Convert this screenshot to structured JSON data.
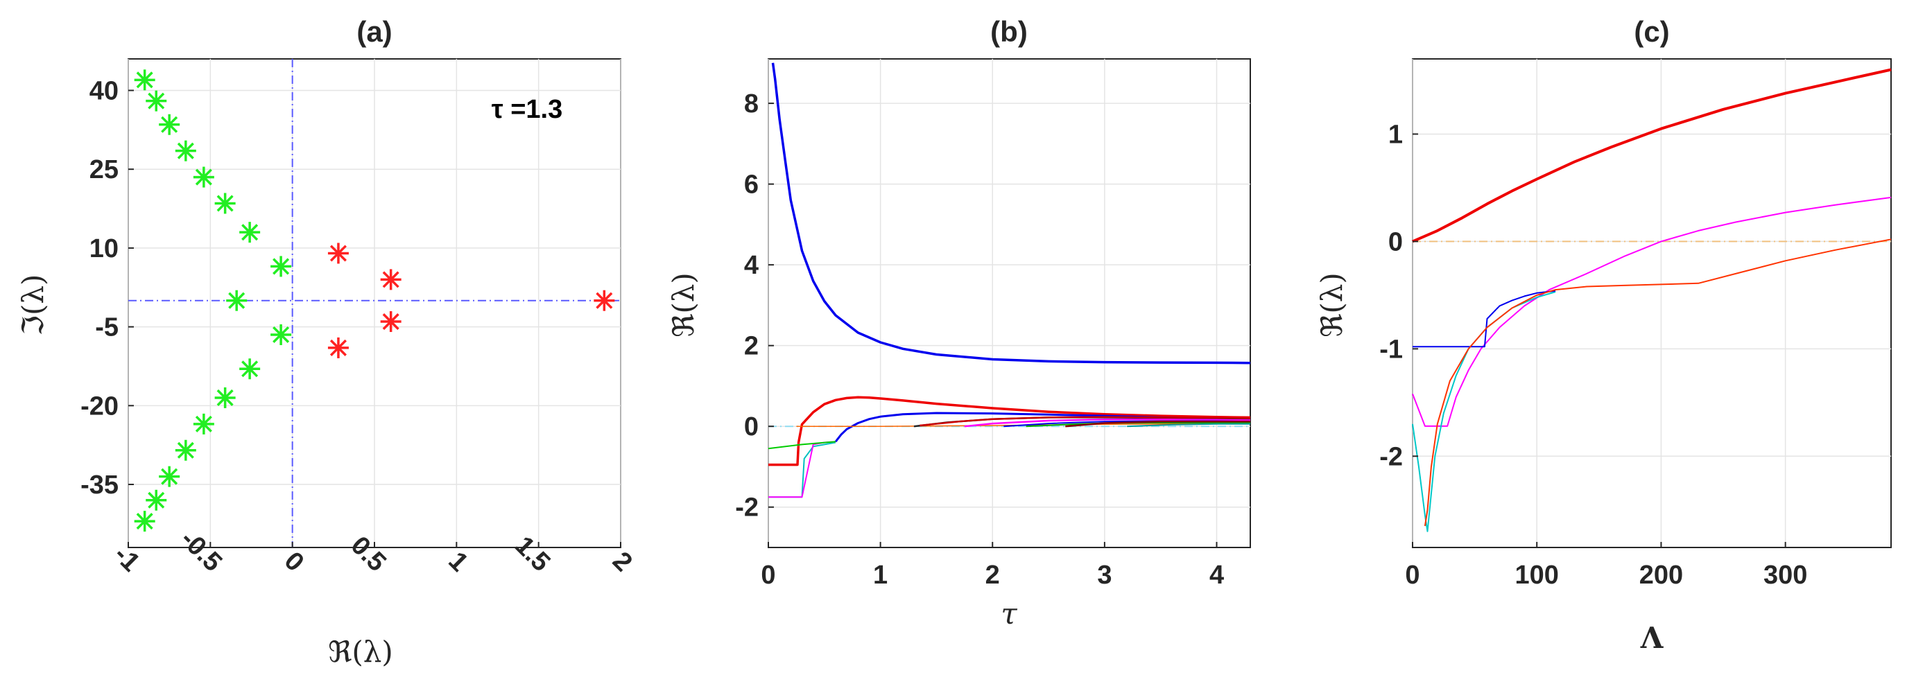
{
  "chart_data": [
    {
      "type": "scatter",
      "title": "(a)",
      "xlabel": "ℜ(λ)",
      "ylabel": "ℑ(λ)",
      "annotation": "τ =1.3",
      "xlim": [
        -1,
        2
      ],
      "ylim": [
        -47,
        46
      ],
      "xticks": [
        "-1",
        "-0.5",
        "0",
        "0.5",
        "1",
        "1.5",
        "2"
      ],
      "xtick_values": [
        -1,
        -0.5,
        0,
        0.5,
        1,
        1.5,
        2
      ],
      "yticks": [
        "40",
        "25",
        "10",
        "-5",
        "-20",
        "-35"
      ],
      "ytick_values": [
        40,
        25,
        10,
        -5,
        -20,
        -35
      ],
      "grid": true,
      "reference_lines": [
        {
          "orientation": "vertical",
          "x": 0,
          "color": "#5a5aff"
        },
        {
          "orientation": "horizontal",
          "y": 0,
          "color": "#5a5aff"
        }
      ],
      "series": [
        {
          "color": "#22ee22",
          "x": [
            -0.9,
            -0.83,
            -0.75,
            -0.65,
            -0.54,
            -0.41,
            -0.26,
            -0.07,
            -0.34,
            -0.07,
            -0.26,
            -0.41,
            -0.54,
            -0.65,
            -0.75,
            -0.83,
            -0.9
          ],
          "y": [
            42,
            38,
            33.5,
            28.5,
            23.5,
            18.5,
            13,
            6.5,
            0,
            -6.5,
            -13,
            -18.5,
            -23.5,
            -28.5,
            -33.5,
            -38,
            -42
          ]
        },
        {
          "color": "#ff2222",
          "x": [
            0.28,
            0.6,
            0.6,
            0.28,
            1.9
          ],
          "y": [
            9,
            4,
            -4,
            -9,
            0
          ]
        }
      ]
    },
    {
      "type": "line",
      "title": "(b)",
      "xlabel": "τ",
      "ylabel": "ℜ(λ)",
      "xlim": [
        0,
        4.3
      ],
      "ylim": [
        -3,
        9.1
      ],
      "xticks": [
        "0",
        "1",
        "2",
        "3",
        "4"
      ],
      "xtick_values": [
        0,
        1,
        2,
        3,
        4
      ],
      "yticks": [
        "8",
        "6",
        "4",
        "2",
        "0",
        "-2"
      ],
      "ytick_values": [
        8,
        6,
        4,
        2,
        0,
        -2
      ],
      "grid": true,
      "reference_lines": [
        {
          "orientation": "horizontal",
          "y": 0,
          "color": "#8fdcf0"
        }
      ],
      "series": [
        {
          "color": "#0000ee",
          "width": 3.5,
          "x": [
            0.04,
            0.06,
            0.1,
            0.15,
            0.2,
            0.3,
            0.4,
            0.5,
            0.6,
            0.8,
            1.0,
            1.2,
            1.5,
            2.0,
            2.5,
            3.0,
            3.5,
            4.0,
            4.3
          ],
          "y": [
            9.0,
            8.6,
            7.6,
            6.6,
            5.6,
            4.35,
            3.6,
            3.1,
            2.75,
            2.32,
            2.08,
            1.92,
            1.78,
            1.66,
            1.61,
            1.59,
            1.58,
            1.575,
            1.57
          ]
        },
        {
          "color": "#ee0000",
          "width": 3.5,
          "x": [
            0,
            0.26,
            0.27,
            0.3,
            0.4,
            0.5,
            0.6,
            0.7,
            0.8,
            0.9,
            1.0,
            1.2,
            1.5,
            2.0,
            2.5,
            3.0,
            3.5,
            4.0,
            4.3
          ],
          "y": [
            -0.95,
            -0.95,
            -0.4,
            0.05,
            0.35,
            0.55,
            0.65,
            0.7,
            0.72,
            0.71,
            0.69,
            0.64,
            0.56,
            0.45,
            0.36,
            0.3,
            0.26,
            0.23,
            0.22
          ]
        },
        {
          "color": "#0000ee",
          "width": 3,
          "x": [
            0.6,
            0.65,
            0.7,
            0.8,
            0.9,
            1.0,
            1.2,
            1.5,
            2.0,
            2.5,
            3.0,
            3.5,
            4.0,
            4.3
          ],
          "y": [
            -0.38,
            -0.2,
            -0.07,
            0.08,
            0.18,
            0.24,
            0.3,
            0.33,
            0.32,
            0.29,
            0.26,
            0.22,
            0.19,
            0.17
          ]
        },
        {
          "color": "#00c0c0",
          "width": 2,
          "x": [
            0,
            0.3,
            0.32,
            0.4,
            0.6
          ],
          "y": [
            -1.75,
            -1.75,
            -0.8,
            -0.5,
            -0.4
          ]
        },
        {
          "color": "#ff00ff",
          "width": 2,
          "x": [
            0,
            0.3,
            0.4,
            0.5,
            0.6
          ],
          "y": [
            -1.75,
            -1.75,
            -0.45,
            -0.4,
            -0.38
          ]
        },
        {
          "color": "#00cc00",
          "width": 2,
          "x": [
            0,
            0.3,
            0.6
          ],
          "y": [
            -0.55,
            -0.45,
            -0.38
          ]
        },
        {
          "color": "#ff6600",
          "width": 1.5,
          "x": [
            0.25,
            1.0,
            2.0,
            3.0,
            4.3
          ],
          "y": [
            0.0,
            0.0,
            0.02,
            0.05,
            0.07
          ]
        },
        {
          "color": "#222222",
          "width": 2.5,
          "x": [
            1.3,
            1.6,
            2.0,
            2.5,
            3.0,
            3.5,
            4.0,
            4.3
          ],
          "y": [
            0.0,
            0.1,
            0.18,
            0.22,
            0.22,
            0.21,
            0.2,
            0.19
          ]
        },
        {
          "color": "#cc0000",
          "width": 2.5,
          "x": [
            1.35,
            1.7,
            2.0,
            2.5,
            3.0,
            3.5,
            4.0,
            4.3
          ],
          "y": [
            0.02,
            0.12,
            0.18,
            0.22,
            0.23,
            0.22,
            0.21,
            0.2
          ]
        },
        {
          "color": "#ff00ff",
          "width": 2.5,
          "x": [
            1.75,
            2.0,
            2.5,
            3.0,
            3.5,
            4.0,
            4.3
          ],
          "y": [
            0.0,
            0.07,
            0.14,
            0.17,
            0.17,
            0.16,
            0.15
          ]
        },
        {
          "color": "#0000ee",
          "width": 2,
          "x": [
            2.1,
            2.5,
            3.0,
            3.5,
            4.0,
            4.3
          ],
          "y": [
            0.0,
            0.07,
            0.12,
            0.13,
            0.13,
            0.12
          ]
        },
        {
          "color": "#00aa00",
          "width": 2,
          "x": [
            2.3,
            2.7,
            3.0,
            3.5,
            4.0,
            4.3
          ],
          "y": [
            0.0,
            0.05,
            0.08,
            0.09,
            0.09,
            0.08
          ]
        },
        {
          "color": "#880000",
          "width": 2.5,
          "x": [
            2.65,
            3.0,
            3.5,
            4.0,
            4.3
          ],
          "y": [
            0.0,
            0.08,
            0.12,
            0.12,
            0.12
          ]
        },
        {
          "color": "#009999",
          "width": 2,
          "x": [
            3.2,
            3.6,
            4.0,
            4.3
          ],
          "y": [
            0.0,
            0.04,
            0.06,
            0.06
          ]
        }
      ]
    },
    {
      "type": "line",
      "title": "(c)",
      "xlabel": "Λ",
      "ylabel": "ℜ(λ)",
      "xlim": [
        0,
        385
      ],
      "ylim": [
        -2.85,
        1.7
      ],
      "xticks": [
        "0",
        "100",
        "200",
        "300"
      ],
      "xtick_values": [
        0,
        100,
        200,
        300
      ],
      "yticks": [
        "1",
        "0",
        "-1",
        "-2"
      ],
      "ytick_values": [
        1,
        0,
        -1,
        -2
      ],
      "grid": true,
      "reference_lines": [
        {
          "orientation": "horizontal",
          "y": 0,
          "color": "#f0c080"
        }
      ],
      "series": [
        {
          "color": "#ee0000",
          "width": 4,
          "x": [
            0,
            20,
            40,
            60,
            80,
            100,
            130,
            160,
            200,
            250,
            300,
            350,
            385
          ],
          "y": [
            0.0,
            0.1,
            0.22,
            0.35,
            0.47,
            0.58,
            0.74,
            0.88,
            1.05,
            1.23,
            1.38,
            1.51,
            1.6
          ]
        },
        {
          "color": "#ff00ff",
          "width": 2,
          "x": [
            0,
            10,
            28,
            35,
            45,
            55,
            70,
            90,
            110,
            140,
            170,
            200,
            230,
            260,
            300,
            340,
            385
          ],
          "y": [
            -1.42,
            -1.72,
            -1.72,
            -1.45,
            -1.2,
            -1.0,
            -0.8,
            -0.6,
            -0.45,
            -0.3,
            -0.14,
            0.0,
            0.1,
            0.18,
            0.27,
            0.34,
            0.41
          ]
        },
        {
          "color": "#00c8c8",
          "width": 2,
          "x": [
            0,
            5,
            10,
            12,
            18,
            25,
            35,
            45,
            60,
            80,
            100,
            115
          ],
          "y": [
            -1.7,
            -2.1,
            -2.55,
            -2.7,
            -2.0,
            -1.6,
            -1.25,
            -1.0,
            -0.8,
            -0.62,
            -0.52,
            -0.47
          ]
        },
        {
          "color": "#0000ee",
          "width": 2,
          "x": [
            0,
            58,
            60,
            70,
            80,
            90,
            100,
            115
          ],
          "y": [
            -0.98,
            -0.98,
            -0.72,
            -0.6,
            -0.55,
            -0.51,
            -0.48,
            -0.46
          ]
        },
        {
          "color": "#ff3300",
          "width": 2,
          "x": [
            10,
            12,
            15,
            20,
            30,
            45,
            60,
            80,
            100,
            115,
            140,
            170,
            200,
            230,
            260,
            300,
            340,
            385
          ],
          "y": [
            -2.65,
            -2.5,
            -2.1,
            -1.7,
            -1.3,
            -1.0,
            -0.8,
            -0.62,
            -0.5,
            -0.45,
            -0.42,
            -0.41,
            -0.4,
            -0.39,
            -0.3,
            -0.18,
            -0.08,
            0.02
          ]
        }
      ]
    }
  ]
}
